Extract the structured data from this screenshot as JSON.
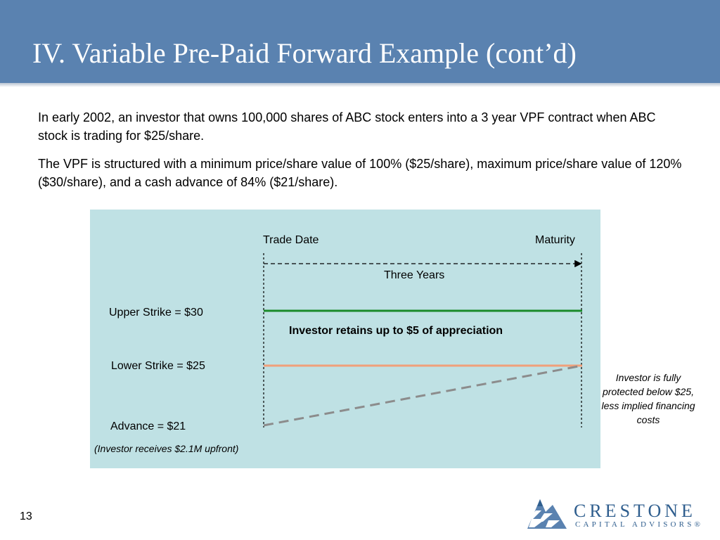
{
  "slide": {
    "title": "IV. Variable Pre-Paid Forward Example (cont’d)",
    "page_number": "13"
  },
  "body": {
    "paragraph1": "In early 2002, an investor that owns 100,000 shares of ABC stock enters into a 3 year VPF contract when ABC stock is trading for $25/share.",
    "paragraph2": "The VPF is structured with a minimum price/share value of 100% ($25/share), maximum price/share value of 120% ($30/share), and a cash advance of 84% ($21/share)."
  },
  "diagram": {
    "trade_date_label": "Trade Date",
    "maturity_label": "Maturity",
    "duration_label": "Three Years",
    "upper_strike_label": "Upper Strike = $30",
    "appreciation_label": "Investor retains up to $5 of appreciation",
    "lower_strike_label": "Lower Strike = $25",
    "advance_label": "Advance = $21",
    "upfront_note": "(Investor receives $2.1M upfront)",
    "protection_note": "Investor is fully protected below $25, less implied financing costs",
    "colors": {
      "background": "#bfe1e4",
      "upper_strike_line": "#1a8a2a",
      "lower_strike_line": "#f0a07a",
      "advance_line": "#8c8c8c"
    }
  },
  "logo": {
    "name": "CRESTONE",
    "subtitle": "CAPITAL ADVISORS®"
  },
  "colors": {
    "header": "#5a82b0",
    "logo": "#2f5e8e"
  }
}
